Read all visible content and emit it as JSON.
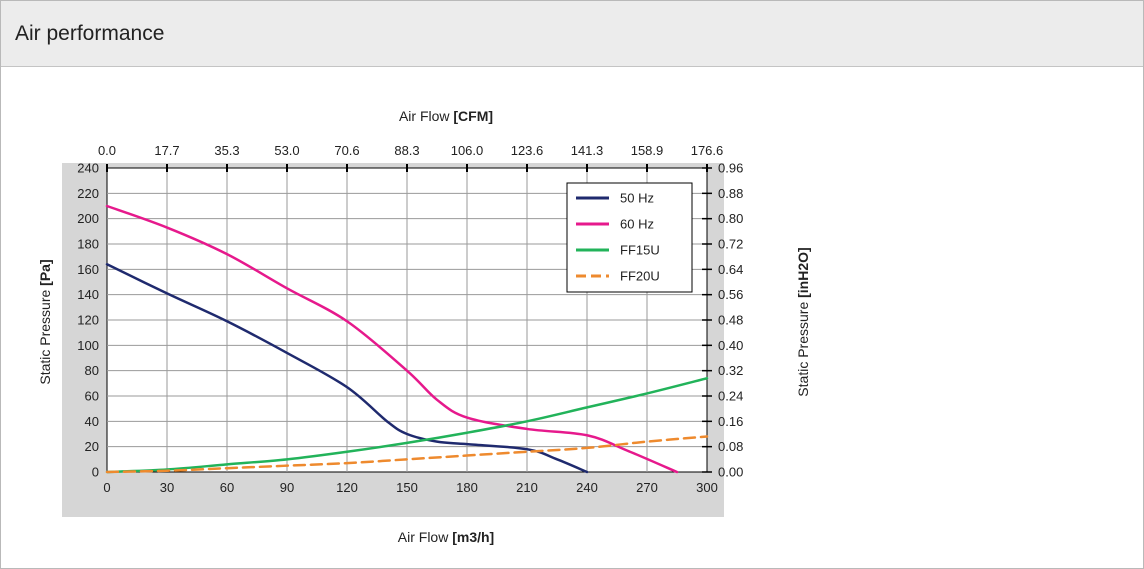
{
  "panel": {
    "title": "Air performance"
  },
  "chart_data": {
    "type": "line",
    "title": "",
    "xlabel_bottom_prefix": "Air Flow ",
    "xlabel_bottom_unit": "[m3/h]",
    "xlabel_top_prefix": "Air Flow ",
    "xlabel_top_unit": "[CFM]",
    "ylabel_left_prefix": "Static Pressure ",
    "ylabel_left_unit": "[Pa]",
    "ylabel_right_prefix": "Static Pressure ",
    "ylabel_right_unit": "[inH2O]",
    "xlim": [
      0,
      300
    ],
    "ylim": [
      0,
      240
    ],
    "x_ticks": [
      "0",
      "30",
      "60",
      "90",
      "120",
      "150",
      "180",
      "210",
      "240",
      "270",
      "300"
    ],
    "x_top_ticks": [
      "0.0",
      "17.7",
      "35.3",
      "53.0",
      "70.6",
      "88.3",
      "106.0",
      "123.6",
      "141.3",
      "158.9",
      "176.6"
    ],
    "y_ticks": [
      "0",
      "20",
      "40",
      "60",
      "80",
      "100",
      "120",
      "140",
      "160",
      "180",
      "200",
      "220",
      "240"
    ],
    "y_right_ticks": [
      "0.00",
      "0.08",
      "0.16",
      "0.24",
      "0.32",
      "0.40",
      "0.48",
      "0.56",
      "0.64",
      "0.72",
      "0.80",
      "0.88",
      "0.96"
    ],
    "grid": true,
    "legend_position": "top-right",
    "series": [
      {
        "name": "50 Hz",
        "color": "#1f2a6e",
        "dash": "solid",
        "x": [
          0,
          30,
          60,
          90,
          120,
          140,
          150,
          165,
          180,
          210,
          225,
          240
        ],
        "y": [
          164,
          141,
          119,
          94,
          67,
          40,
          30,
          24,
          22,
          18,
          10,
          0
        ]
      },
      {
        "name": "60 Hz",
        "color": "#e6198c",
        "dash": "solid",
        "x": [
          0,
          30,
          60,
          90,
          120,
          150,
          165,
          180,
          210,
          240,
          260,
          285
        ],
        "y": [
          210,
          193,
          172,
          145,
          119,
          80,
          57,
          43,
          34,
          29,
          17,
          0
        ]
      },
      {
        "name": "FF15U",
        "color": "#22b35a",
        "dash": "solid",
        "x": [
          0,
          30,
          60,
          90,
          120,
          150,
          180,
          210,
          240,
          270,
          300
        ],
        "y": [
          0,
          2,
          6,
          10,
          16,
          23,
          31,
          40,
          51,
          62,
          74
        ]
      },
      {
        "name": "FF20U",
        "color": "#ee8a2e",
        "dash": "dashed",
        "x": [
          0,
          30,
          60,
          90,
          120,
          150,
          180,
          210,
          240,
          270,
          300
        ],
        "y": [
          0,
          1,
          3,
          5,
          7,
          10,
          13,
          16,
          19,
          24,
          28
        ]
      }
    ]
  }
}
